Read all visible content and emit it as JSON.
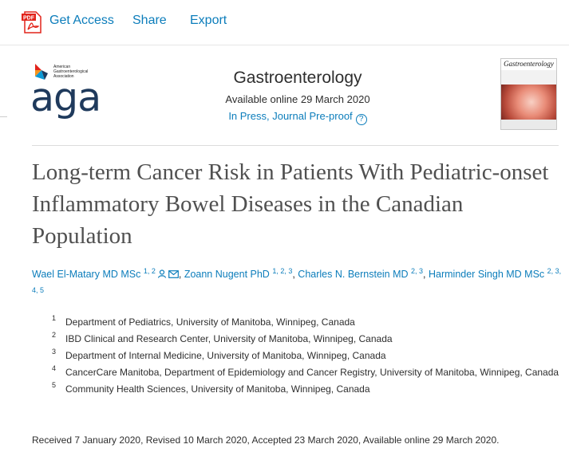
{
  "toolbar": {
    "pdf_icon_text": "PDF",
    "get_access": "Get Access",
    "share": "Share",
    "export": "Export"
  },
  "logo": {
    "small_text": "American Gastroenterological Association",
    "word": "aga"
  },
  "journal": {
    "name": "Gastroenterology",
    "available": "Available online 29 March 2020",
    "status": "In Press, Journal Pre-proof",
    "help_glyph": "?",
    "cover_title": "Gastroenterology"
  },
  "article": {
    "title": "Long-term Cancer Risk in Patients With Pediatric-onset Inflammatory Bowel Diseases in the Canadian Population"
  },
  "authors": [
    {
      "name": "Wael El-Matary MD MSc",
      "sup": "1, 2"
    },
    {
      "name": "Zoann Nugent PhD",
      "sup": "1, 2, 3"
    },
    {
      "name": "Charles N. Bernstein MD",
      "sup": "2, 3"
    },
    {
      "name": "Harminder Singh MD MSc",
      "sup": "2, 3, 4, 5"
    }
  ],
  "author_separator": ", ",
  "affiliations": [
    {
      "num": "1",
      "text": "Department of Pediatrics, University of Manitoba, Winnipeg, Canada"
    },
    {
      "num": "2",
      "text": "IBD Clinical and Research Center, University of Manitoba, Winnipeg, Canada"
    },
    {
      "num": "3",
      "text": "Department of Internal Medicine, University of Manitoba, Winnipeg, Canada"
    },
    {
      "num": "4",
      "text": "CancerCare Manitoba, Department of Epidemiology and Cancer Registry, University of Manitoba, Winnipeg, Canada"
    },
    {
      "num": "5",
      "text": "Community Health Sciences, University of Manitoba, Winnipeg, Canada"
    }
  ],
  "received": "Received 7 January 2020, Revised 10 March 2020, Accepted 23 March 2020, Available online 29 March 2020.",
  "colors": {
    "link": "#0c7dbb",
    "pdf_red": "#e2231a",
    "aga_navy": "#1f3a5c",
    "title_gray": "#505050"
  }
}
